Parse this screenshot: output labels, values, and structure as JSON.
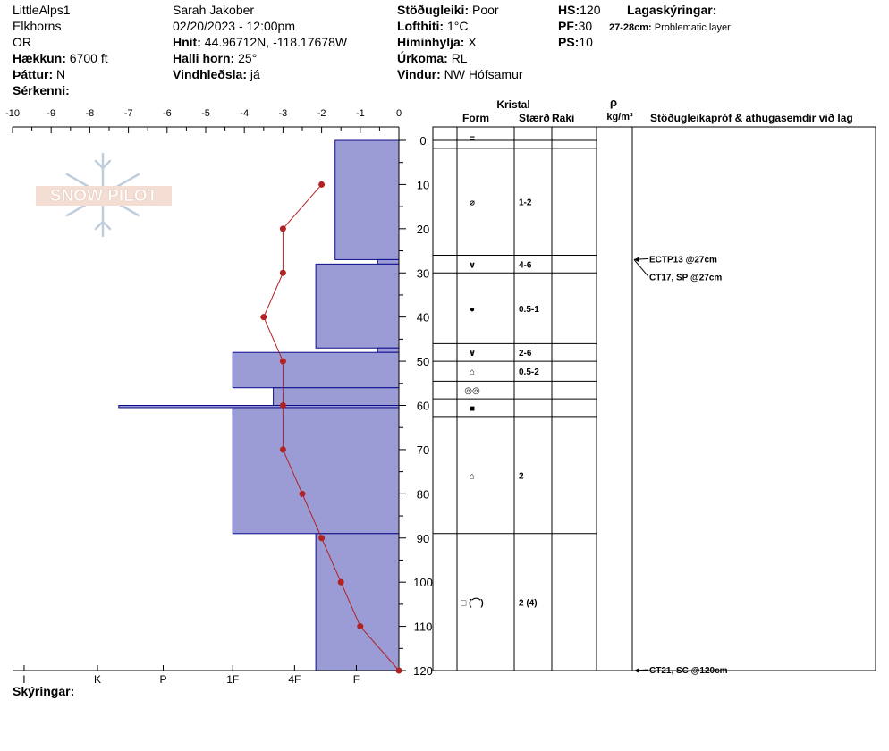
{
  "header": {
    "site": "LittleAlps1",
    "area": "Elkhorns",
    "state": "OR",
    "elev_label": "Hækkun:",
    "elev_value": "6700 ft",
    "aspect_label": "Þáttur:",
    "aspect_value": "N",
    "special_label": "Sérkenni:",
    "observer": "Sarah Jakober",
    "datetime": "02/20/2023 - 12:00pm",
    "coords_label": "Hnit:",
    "coords_value": "44.96712N, -118.17678W",
    "slope_label": "Halli horn:",
    "slope_value": "25°",
    "wind_load_label": "Vindhleðsla:",
    "wind_load_value": "já",
    "stability_label": "Stöðugleiki:",
    "stability_value": "Poor",
    "airtemp_label": "Lofthiti:",
    "airtemp_value": "1°C",
    "sky_label": "Himinhylja:",
    "sky_value": "X",
    "precip_label": "Úrkoma:",
    "precip_value": "RL",
    "wind_label": "Vindur:",
    "wind_value": "NW Hófsamur",
    "hs_label": "HS:",
    "hs_value": "120",
    "pf_label": "PF:",
    "pf_value": "30",
    "ps_label": "PS:",
    "ps_value": "10",
    "layer_notes_title": "Lagaskýringar:",
    "layer_note_depth": "27-28cm:",
    "layer_note_text": "Problematic layer"
  },
  "legend_label": "Skýringar:",
  "watermark": "SNOW PILOT",
  "table": {
    "crystal_label": "Kristal",
    "form_label": "Form",
    "size_label": "Stærð",
    "moisture_label": "Raki",
    "rho_label": "ρ",
    "density_unit": "kg/m³",
    "tests_label": "Stöðugleikapróf & athugasemdir við lag",
    "layers": [
      {
        "top": 0,
        "bottom": 1.8,
        "form": "=",
        "size": ""
      },
      {
        "top": 1.8,
        "bottom": 26,
        "form": "⌀",
        "size": "1-2"
      },
      {
        "top": 26,
        "bottom": 30,
        "form": "∨",
        "size": "4-6"
      },
      {
        "top": 30,
        "bottom": 46,
        "form": "●",
        "size": "0.5-1"
      },
      {
        "top": 46,
        "bottom": 50,
        "form": "∨",
        "size": "2-6"
      },
      {
        "top": 50,
        "bottom": 54.5,
        "form": "⌂",
        "size": "0.5-2"
      },
      {
        "top": 54.5,
        "bottom": 58.5,
        "form": "◎◎",
        "size": ""
      },
      {
        "top": 58.5,
        "bottom": 62.5,
        "form": "■",
        "size": ""
      },
      {
        "top": 62.5,
        "bottom": 89,
        "form": "⌂",
        "size": "2"
      },
      {
        "top": 89,
        "bottom": 120,
        "form": "□ (⌒)",
        "size": "2 (4)"
      }
    ],
    "tests": [
      {
        "depth": 27,
        "text": "ECTP13 @27cm"
      },
      {
        "depth": 27,
        "text": "CT17, SP @27cm"
      },
      {
        "depth": 120,
        "text": "CT21, SC @120cm"
      }
    ]
  },
  "chart_data": {
    "type": "bar",
    "orientation": "horizontal",
    "xlim": [
      -10,
      0
    ],
    "ylim": [
      0,
      120
    ],
    "x_ticks": [
      "-10",
      "-9",
      "-8",
      "-7",
      "-6",
      "-5",
      "-4",
      "-3",
      "-2",
      "-1",
      "0"
    ],
    "y_ticks": [
      "0",
      "10",
      "20",
      "30",
      "40",
      "50",
      "60",
      "70",
      "80",
      "90",
      "100",
      "110",
      "120"
    ],
    "hardness_ticks": [
      "I",
      "K",
      "P",
      "1F",
      "4F",
      "F"
    ],
    "hardness_layers": [
      {
        "top": 0,
        "bottom": 27,
        "hardness": "F+"
      },
      {
        "top": 27,
        "bottom": 28,
        "hardness": "F-"
      },
      {
        "top": 28,
        "bottom": 47,
        "hardness": "4F-"
      },
      {
        "top": 47,
        "bottom": 48,
        "hardness": "F-"
      },
      {
        "top": 48,
        "bottom": 56,
        "hardness": "1F"
      },
      {
        "top": 56,
        "bottom": 60,
        "hardness": "4F+"
      },
      {
        "top": 60,
        "bottom": 60.5,
        "hardness": "K-"
      },
      {
        "top": 60.5,
        "bottom": 89,
        "hardness": "1F"
      },
      {
        "top": 89,
        "bottom": 120,
        "hardness": "4F-"
      }
    ],
    "temperature_profile": [
      {
        "depth": 10,
        "temp": -2
      },
      {
        "depth": 20,
        "temp": -3
      },
      {
        "depth": 30,
        "temp": -3
      },
      {
        "depth": 40,
        "temp": -3.5
      },
      {
        "depth": 50,
        "temp": -3
      },
      {
        "depth": 60,
        "temp": -3
      },
      {
        "depth": 70,
        "temp": -3
      },
      {
        "depth": 80,
        "temp": -2.5
      },
      {
        "depth": 90,
        "temp": -2
      },
      {
        "depth": 100,
        "temp": -1.5
      },
      {
        "depth": 110,
        "temp": -1
      },
      {
        "depth": 120,
        "temp": 0
      }
    ],
    "colors": {
      "hardness": "#9b9bd6",
      "hardness_edge": "#0c0c8a",
      "temperature": "#b22222"
    }
  }
}
